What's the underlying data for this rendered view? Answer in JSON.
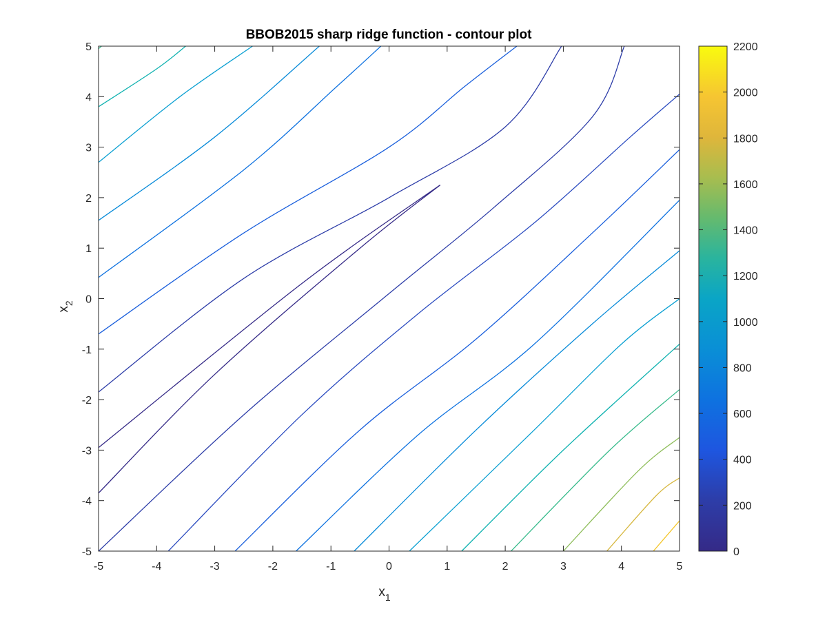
{
  "chart_data": {
    "type": "contour",
    "title": "BBOB2015 sharp ridge function - contour plot",
    "xlabel": {
      "base": "x",
      "subscript": "1"
    },
    "ylabel": {
      "base": "x",
      "subscript": "2"
    },
    "xlim": [
      -5,
      5
    ],
    "ylim": [
      -5,
      5
    ],
    "x_ticks": [
      "-5",
      "-4",
      "-3",
      "-2",
      "-1",
      "0",
      "1",
      "2",
      "3",
      "4",
      "5"
    ],
    "y_ticks": [
      "-5",
      "-4",
      "-3",
      "-2",
      "-1",
      "0",
      "1",
      "2",
      "3",
      "4",
      "5"
    ],
    "colorbar": {
      "range": [
        0,
        2200
      ],
      "ticks": [
        "0",
        "200",
        "400",
        "600",
        "800",
        "1000",
        "1200",
        "1400",
        "1600",
        "1800",
        "2000",
        "2200"
      ],
      "colormap": "parula"
    },
    "ridge_tip": [
      0.88,
      2.25
    ],
    "contour_levels": [
      {
        "level": 80,
        "color": "#352a87",
        "points": [
          [
            0.88,
            2.25
          ],
          [
            -1.5,
            0.3
          ],
          [
            -5,
            -2.95
          ]
        ]
      },
      {
        "level": 100,
        "color": "#352a87",
        "points": [
          [
            0.88,
            2.25
          ],
          [
            -0.5,
            1.0
          ],
          [
            -3.0,
            -1.5
          ],
          [
            -5,
            -3.85
          ]
        ]
      },
      {
        "level": 200,
        "color": "#2d3da8",
        "points": [
          [
            -5,
            -5
          ],
          [
            -2.5,
            -2.3
          ],
          [
            0,
            0.1
          ],
          [
            1.8,
            1.8
          ],
          [
            3.5,
            3.6
          ],
          [
            4.05,
            5
          ]
        ]
      },
      {
        "level": 250,
        "color": "#2d3da8",
        "points": [
          [
            -5,
            -1.85
          ],
          [
            -2.5,
            0.4
          ],
          [
            0,
            2.0
          ],
          [
            2.0,
            3.4
          ],
          [
            2.97,
            5
          ]
        ]
      },
      {
        "level": 300,
        "color": "#2c4cc0",
        "points": [
          [
            -3.8,
            -5
          ],
          [
            -1.5,
            -2.3
          ],
          [
            0.5,
            -0.3
          ],
          [
            2.5,
            1.5
          ],
          [
            4.15,
            3.2
          ],
          [
            5,
            4.05
          ]
        ]
      },
      {
        "level": 400,
        "color": "#1a5fdc",
        "points": [
          [
            -5,
            -0.7
          ],
          [
            -2.5,
            1.3
          ],
          [
            0,
            3.0
          ],
          [
            1.3,
            4.2
          ],
          [
            2.2,
            5
          ]
        ]
      },
      {
        "level": 450,
        "color": "#1a5fdc",
        "points": [
          [
            -2.65,
            -5
          ],
          [
            -0.5,
            -2.6
          ],
          [
            1.5,
            -0.8
          ],
          [
            3.5,
            1.3
          ],
          [
            5,
            2.95
          ]
        ]
      },
      {
        "level": 550,
        "color": "#0e72e0",
        "points": [
          [
            -5,
            0.42
          ],
          [
            -2.5,
            2.55
          ],
          [
            -0.9,
            4.2
          ],
          [
            -0.14,
            5
          ]
        ]
      },
      {
        "level": 600,
        "color": "#0e72e0",
        "points": [
          [
            -1.6,
            -5
          ],
          [
            0.5,
            -2.7
          ],
          [
            2.5,
            -0.9
          ],
          [
            5,
            1.95
          ]
        ]
      },
      {
        "level": 700,
        "color": "#088bd9",
        "points": [
          [
            -5,
            1.55
          ],
          [
            -3.0,
            3.2
          ],
          [
            -1.2,
            5
          ]
        ]
      },
      {
        "level": 750,
        "color": "#088bd9",
        "points": [
          [
            -0.6,
            -5
          ],
          [
            1.5,
            -2.6
          ],
          [
            3.5,
            -0.5
          ],
          [
            5,
            0.95
          ]
        ]
      },
      {
        "level": 850,
        "color": "#0ba0d2",
        "points": [
          [
            -5,
            2.7
          ],
          [
            -3.6,
            4.0
          ],
          [
            -2.35,
            5
          ]
        ]
      },
      {
        "level": 900,
        "color": "#0ba0d2",
        "points": [
          [
            0.35,
            -5
          ],
          [
            2.5,
            -2.6
          ],
          [
            4.0,
            -0.9
          ],
          [
            5,
            0.0
          ]
        ]
      },
      {
        "level": 1000,
        "color": "#10b2b0",
        "points": [
          [
            -5,
            3.8
          ],
          [
            -4.0,
            4.55
          ],
          [
            -3.5,
            5
          ]
        ]
      },
      {
        "level": 1050,
        "color": "#10b2b0",
        "points": [
          [
            1.25,
            -5
          ],
          [
            3.0,
            -3.0
          ],
          [
            5,
            -0.9
          ]
        ]
      },
      {
        "level": 1150,
        "color": "#38bb8c",
        "points": [
          [
            -5,
            4.95
          ],
          [
            -4.95,
            5
          ]
        ]
      },
      {
        "level": 1200,
        "color": "#38bb8c",
        "points": [
          [
            2.1,
            -5
          ],
          [
            3.8,
            -3.0
          ],
          [
            5,
            -1.8
          ]
        ]
      },
      {
        "level": 1400,
        "color": "#8fbe5c",
        "points": [
          [
            3.0,
            -5
          ],
          [
            4.3,
            -3.4
          ],
          [
            5,
            -2.75
          ]
        ]
      },
      {
        "level": 1650,
        "color": "#d7b840",
        "points": [
          [
            3.75,
            -5
          ],
          [
            4.6,
            -3.9
          ],
          [
            5,
            -3.55
          ]
        ]
      },
      {
        "level": 1850,
        "color": "#f4c62a",
        "points": [
          [
            4.55,
            -5
          ],
          [
            4.85,
            -4.6
          ],
          [
            5,
            -4.4
          ]
        ]
      }
    ]
  }
}
